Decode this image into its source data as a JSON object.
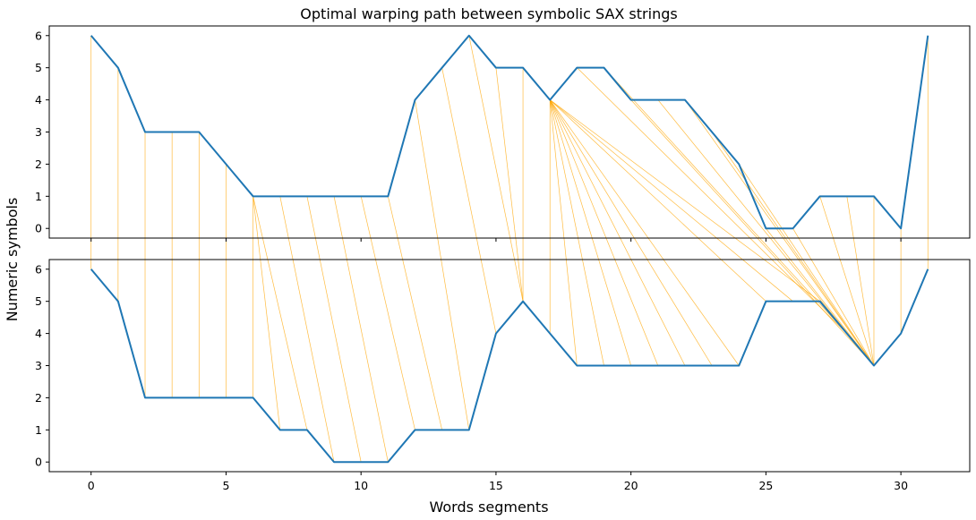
{
  "chart_data": {
    "type": "line",
    "title": "Optimal warping path between symbolic SAX strings",
    "xlabel": "Words segments",
    "ylabel": "Numeric symbols",
    "xlim": [
      -1.55,
      32.55
    ],
    "ylim": [
      -0.3,
      6.3
    ],
    "xticks": [
      0,
      5,
      10,
      15,
      20,
      25,
      30
    ],
    "yticks": [
      0,
      1,
      2,
      3,
      4,
      5,
      6
    ],
    "series": [
      {
        "values": [
          6,
          5,
          3,
          3,
          3,
          2,
          1,
          1,
          1,
          1,
          1,
          1,
          4,
          5,
          6,
          5,
          5,
          4,
          5,
          5,
          4,
          4,
          4,
          3,
          2,
          0,
          0,
          1,
          1,
          1,
          0,
          6
        ]
      },
      {
        "values": [
          6,
          5,
          2,
          2,
          2,
          2,
          2,
          1,
          1,
          0,
          0,
          0,
          1,
          1,
          1,
          4,
          5,
          4,
          3,
          3,
          3,
          3,
          3,
          3,
          3,
          5,
          5,
          5,
          4,
          3,
          4,
          6
        ]
      }
    ],
    "warping_path": [
      [
        0,
        0
      ],
      [
        1,
        1
      ],
      [
        2,
        2
      ],
      [
        3,
        3
      ],
      [
        4,
        4
      ],
      [
        5,
        5
      ],
      [
        6,
        6
      ],
      [
        6,
        7
      ],
      [
        6,
        8
      ],
      [
        7,
        9
      ],
      [
        8,
        10
      ],
      [
        9,
        11
      ],
      [
        10,
        12
      ],
      [
        11,
        13
      ],
      [
        12,
        14
      ],
      [
        13,
        15
      ],
      [
        14,
        16
      ],
      [
        15,
        16
      ],
      [
        16,
        16
      ],
      [
        17,
        17
      ],
      [
        17,
        18
      ],
      [
        17,
        19
      ],
      [
        17,
        20
      ],
      [
        17,
        21
      ],
      [
        17,
        22
      ],
      [
        17,
        23
      ],
      [
        17,
        24
      ],
      [
        17,
        25
      ],
      [
        17,
        26
      ],
      [
        17,
        27
      ],
      [
        18,
        28
      ],
      [
        19,
        28
      ],
      [
        20,
        29
      ],
      [
        21,
        29
      ],
      [
        22,
        29
      ],
      [
        23,
        29
      ],
      [
        24,
        29
      ],
      [
        25,
        29
      ],
      [
        26,
        29
      ],
      [
        27,
        29
      ],
      [
        28,
        29
      ],
      [
        29,
        29
      ],
      [
        30,
        30
      ],
      [
        31,
        31
      ]
    ]
  }
}
